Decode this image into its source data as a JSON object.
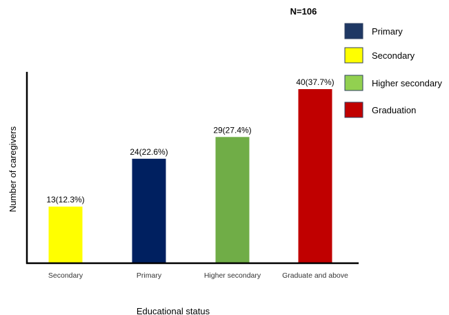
{
  "chart_data": {
    "type": "bar",
    "title": "",
    "annotation": "N=106",
    "xlabel": "Educational status",
    "ylabel": "Number of caregivers",
    "ylim": [
      0,
      50
    ],
    "grid": false,
    "categories": [
      "Secondary",
      "Primary",
      "Higher secondary",
      "Graduate and above"
    ],
    "values": [
      13,
      24,
      29,
      40
    ],
    "data_labels": [
      "13(12.3%)",
      "24(22.6%)",
      "29(27.4%)",
      "40(37.7%)"
    ],
    "bar_colors": [
      "#ffff00",
      "#002060",
      "#70ad47",
      "#c00000"
    ],
    "legend": {
      "placement": "top-right",
      "items": [
        {
          "label": "Primary",
          "color": "#1f3864"
        },
        {
          "label": "Secondary",
          "color": "#ffff00"
        },
        {
          "label": "Higher secondary",
          "color": "#92d050"
        },
        {
          "label": "Graduation",
          "color": "#c00000"
        }
      ]
    }
  }
}
